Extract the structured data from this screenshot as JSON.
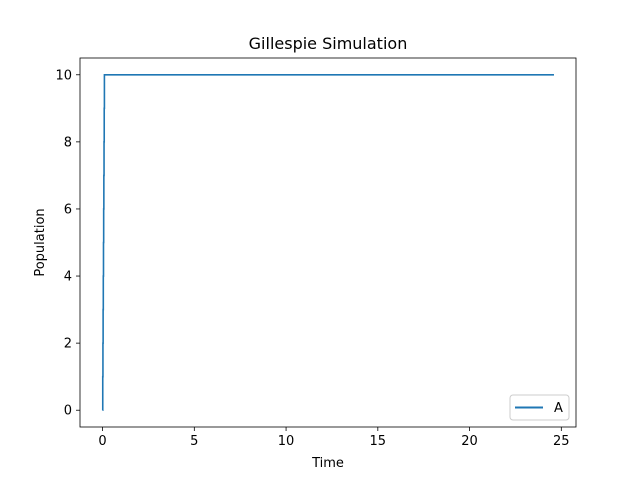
{
  "chart_data": {
    "type": "line",
    "title": "Gillespie Simulation",
    "xlabel": "Time",
    "ylabel": "Population",
    "xlim": [
      -1.23,
      25.8
    ],
    "ylim": [
      -0.5,
      10.5
    ],
    "xticks": [
      0,
      5,
      10,
      15,
      20,
      25
    ],
    "yticks": [
      0,
      2,
      4,
      6,
      8,
      10
    ],
    "grid": false,
    "legend": {
      "placement": "lower-right"
    },
    "series": [
      {
        "name": "A",
        "color": "#1f77b4",
        "x": [
          0.0,
          0.0,
          0.01,
          0.01,
          0.02,
          0.02,
          0.03,
          0.03,
          0.04,
          0.04,
          0.05,
          0.05,
          0.06,
          0.06,
          0.07,
          0.07,
          0.08,
          0.08,
          0.09,
          0.09,
          0.1,
          0.1,
          24.6
        ],
        "y": [
          0,
          0,
          0,
          1,
          1,
          2,
          2,
          3,
          3,
          4,
          4,
          5,
          5,
          6,
          6,
          7,
          7,
          8,
          8,
          9,
          9,
          10,
          10
        ]
      }
    ]
  }
}
